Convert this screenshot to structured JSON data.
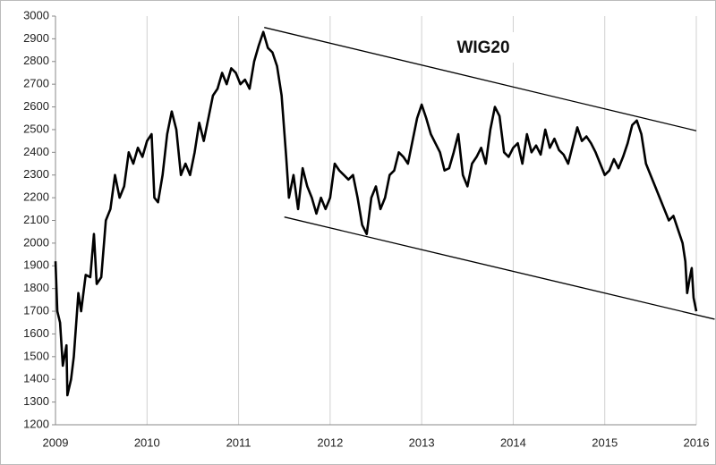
{
  "chart_data": {
    "type": "line",
    "title": "WIG20",
    "xlim": [
      2009,
      2016
    ],
    "xticks": [
      2009,
      2010,
      2011,
      2012,
      2013,
      2014,
      2015,
      2016
    ],
    "ylim": [
      1200,
      3000
    ],
    "yticks": [
      1200,
      1300,
      1400,
      1500,
      1600,
      1700,
      1800,
      1900,
      2000,
      2100,
      2200,
      2300,
      2400,
      2500,
      2600,
      2700,
      2800,
      2900,
      3000
    ],
    "xgrid": true,
    "color": "#000000",
    "x": [
      2009.0,
      2009.02,
      2009.05,
      2009.08,
      2009.12,
      2009.13,
      2009.17,
      2009.2,
      2009.25,
      2009.28,
      2009.33,
      2009.38,
      2009.42,
      2009.45,
      2009.5,
      2009.55,
      2009.6,
      2009.65,
      2009.7,
      2009.75,
      2009.8,
      2009.85,
      2009.9,
      2009.95,
      2010.0,
      2010.05,
      2010.08,
      2010.12,
      2010.17,
      2010.22,
      2010.27,
      2010.32,
      2010.37,
      2010.42,
      2010.47,
      2010.52,
      2010.57,
      2010.62,
      2010.67,
      2010.72,
      2010.77,
      2010.82,
      2010.87,
      2010.92,
      2010.97,
      2011.02,
      2011.07,
      2011.12,
      2011.17,
      2011.22,
      2011.27,
      2011.32,
      2011.37,
      2011.42,
      2011.47,
      2011.52,
      2011.55,
      2011.6,
      2011.65,
      2011.7,
      2011.75,
      2011.8,
      2011.85,
      2011.9,
      2011.95,
      2012.0,
      2012.05,
      2012.1,
      2012.15,
      2012.2,
      2012.25,
      2012.3,
      2012.35,
      2012.4,
      2012.45,
      2012.5,
      2012.55,
      2012.6,
      2012.65,
      2012.7,
      2012.75,
      2012.8,
      2012.85,
      2012.9,
      2012.95,
      2013.0,
      2013.05,
      2013.1,
      2013.15,
      2013.2,
      2013.25,
      2013.3,
      2013.35,
      2013.4,
      2013.45,
      2013.5,
      2013.55,
      2013.6,
      2013.65,
      2013.7,
      2013.75,
      2013.8,
      2013.85,
      2013.9,
      2013.95,
      2014.0,
      2014.05,
      2014.1,
      2014.15,
      2014.2,
      2014.25,
      2014.3,
      2014.35,
      2014.4,
      2014.45,
      2014.5,
      2014.55,
      2014.6,
      2014.65,
      2014.7,
      2014.75,
      2014.8,
      2014.85,
      2014.9,
      2014.95,
      2015.0,
      2015.05,
      2015.1,
      2015.15,
      2015.2,
      2015.25,
      2015.3,
      2015.35,
      2015.4,
      2015.45,
      2015.5,
      2015.55,
      2015.6,
      2015.65,
      2015.7,
      2015.75,
      2015.8,
      2015.85,
      2015.88,
      2015.9,
      2015.93,
      2015.95,
      2015.97,
      2016.0
    ],
    "values": [
      1920,
      1700,
      1650,
      1460,
      1550,
      1330,
      1400,
      1500,
      1780,
      1700,
      1860,
      1850,
      2040,
      1820,
      1850,
      2100,
      2150,
      2300,
      2200,
      2250,
      2400,
      2350,
      2420,
      2380,
      2450,
      2480,
      2200,
      2180,
      2300,
      2480,
      2580,
      2500,
      2300,
      2350,
      2300,
      2400,
      2530,
      2450,
      2550,
      2650,
      2680,
      2750,
      2700,
      2770,
      2750,
      2700,
      2720,
      2680,
      2800,
      2870,
      2930,
      2860,
      2840,
      2780,
      2650,
      2380,
      2200,
      2300,
      2150,
      2330,
      2250,
      2200,
      2130,
      2200,
      2150,
      2200,
      2350,
      2320,
      2300,
      2280,
      2300,
      2200,
      2080,
      2040,
      2200,
      2250,
      2150,
      2200,
      2300,
      2320,
      2400,
      2380,
      2350,
      2450,
      2550,
      2610,
      2550,
      2480,
      2440,
      2400,
      2320,
      2330,
      2400,
      2480,
      2300,
      2250,
      2350,
      2380,
      2420,
      2350,
      2500,
      2600,
      2560,
      2400,
      2380,
      2420,
      2440,
      2350,
      2480,
      2400,
      2430,
      2390,
      2500,
      2420,
      2460,
      2410,
      2390,
      2350,
      2430,
      2510,
      2450,
      2470,
      2440,
      2400,
      2350,
      2300,
      2320,
      2370,
      2330,
      2380,
      2440,
      2520,
      2540,
      2480,
      2350,
      2300,
      2250,
      2200,
      2150,
      2100,
      2120,
      2060,
      2000,
      1920,
      1780,
      1850,
      1890,
      1760,
      1700
    ],
    "trend_lines": [
      {
        "x": [
          2011.28,
          2016.0
        ],
        "values": [
          2950,
          2495
        ]
      },
      {
        "x": [
          2011.5,
          2016.2
        ],
        "values": [
          2115,
          1665
        ]
      }
    ]
  }
}
